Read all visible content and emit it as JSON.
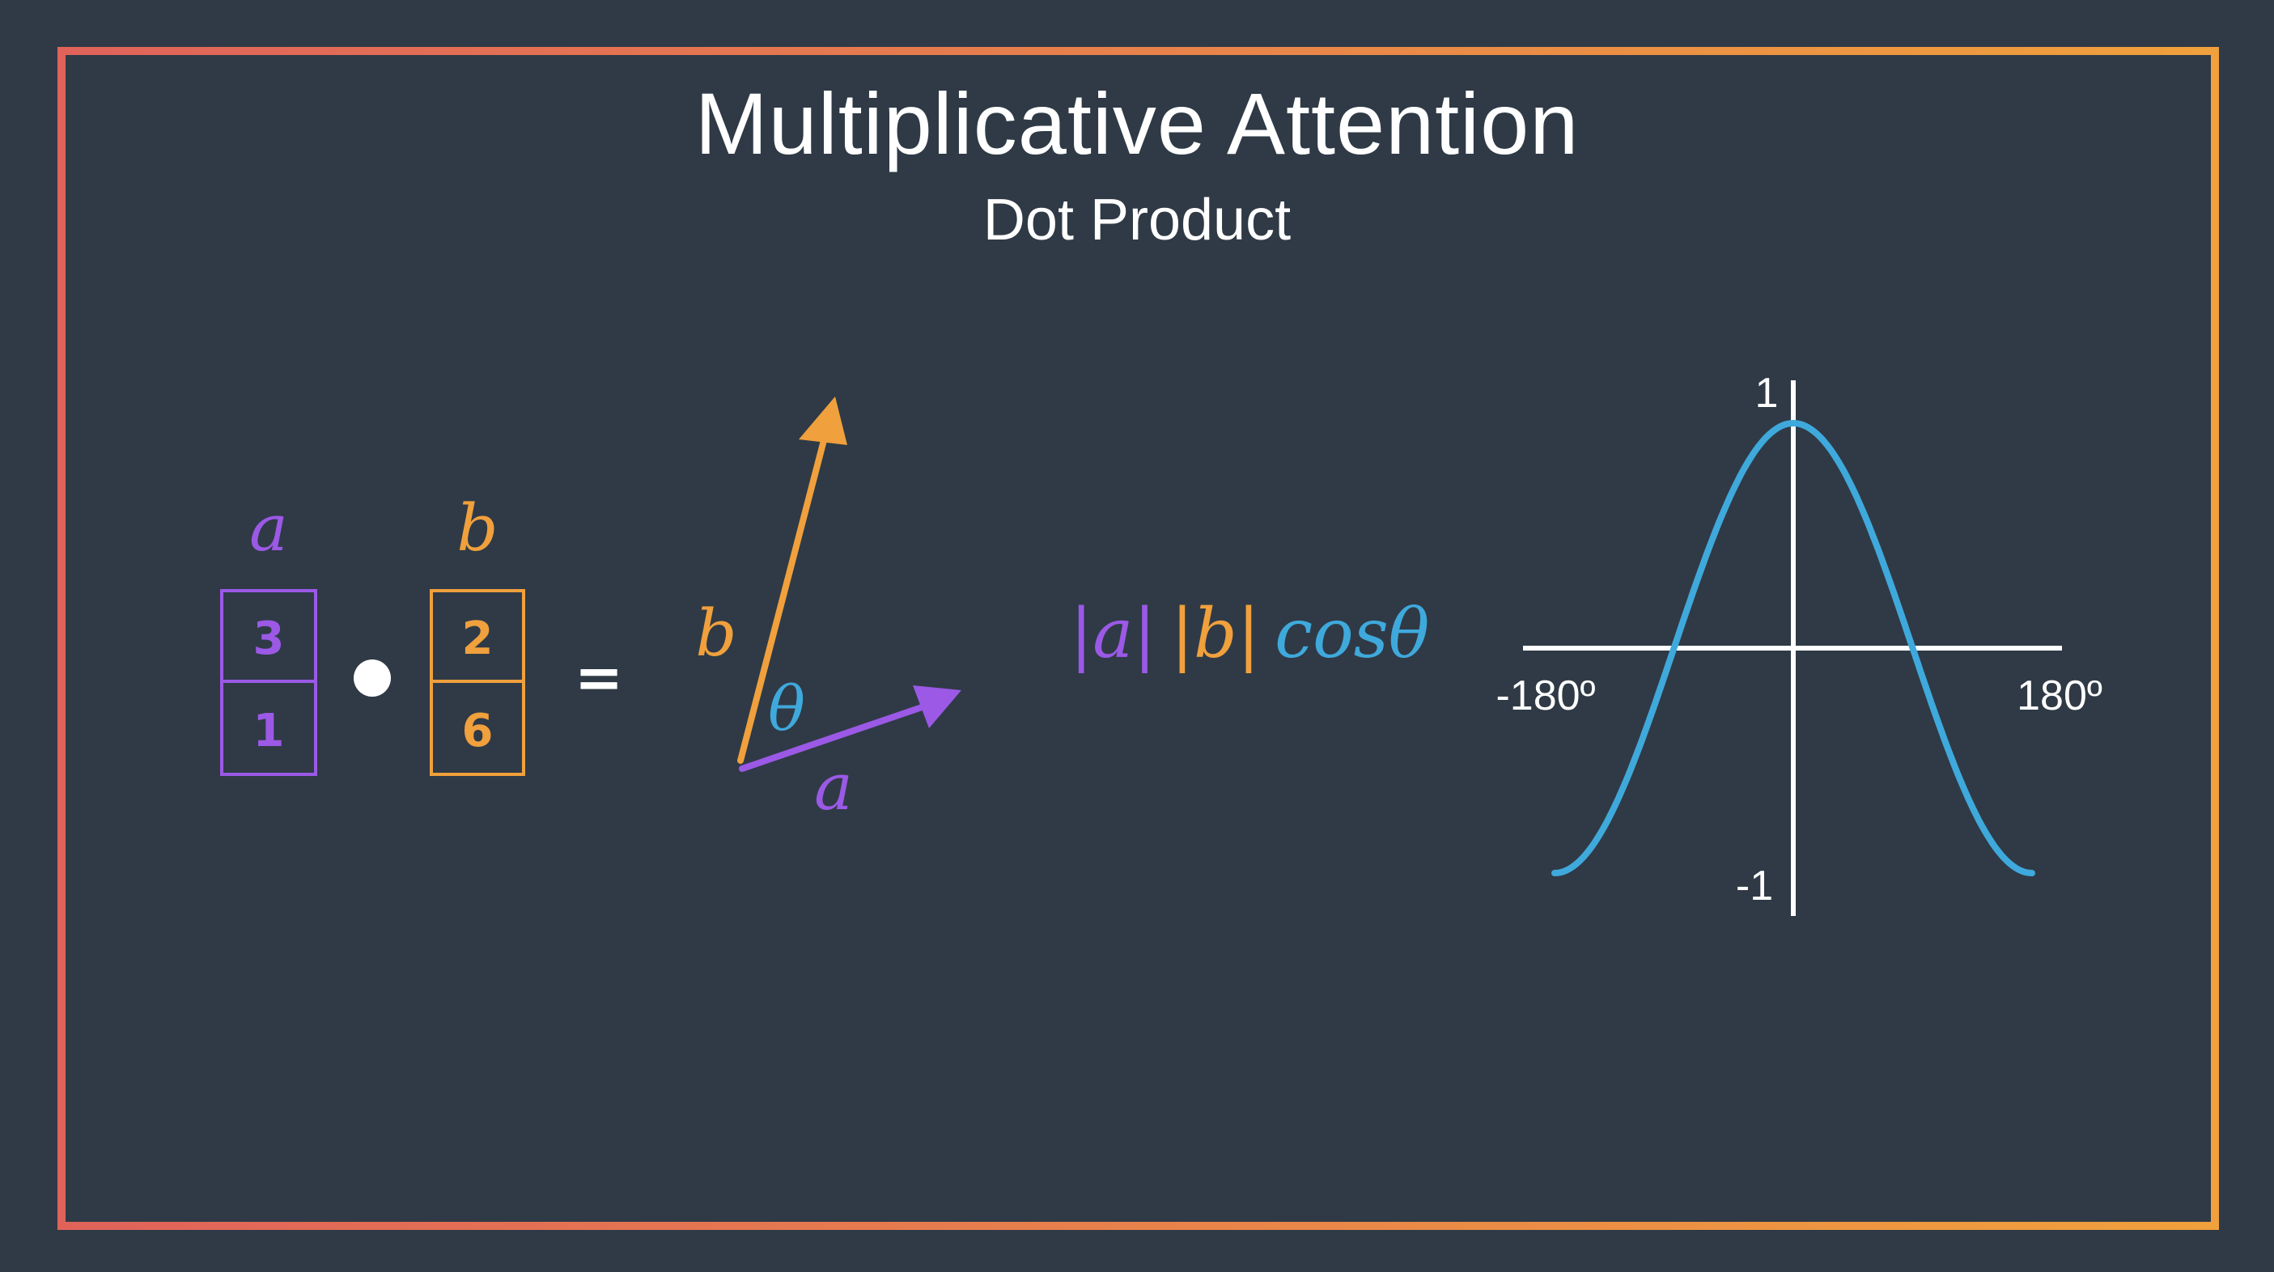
{
  "slide": {
    "title": "Multiplicative Attention",
    "subtitle": "Dot Product"
  },
  "vectors": {
    "a": {
      "label": "a",
      "values": [
        "3",
        "1"
      ],
      "color": "#9b59e6"
    },
    "b": {
      "label": "b",
      "values": [
        "2",
        "6"
      ],
      "color": "#f0a03c"
    },
    "equals": "="
  },
  "diagram": {
    "label_a": "a",
    "label_b": "b",
    "angle": "θ",
    "angle_color": "#3fa9dc"
  },
  "formula": {
    "abs_a": "|a|",
    "abs_b": "|b|",
    "cos": "cosθ"
  },
  "cosine_plot": {
    "y_max_label": "1",
    "y_min_label": "-1",
    "x_min_label": "-180º",
    "x_max_label": "180º",
    "curve_color": "#3fa9dc"
  },
  "border_colors": {
    "start": "#e0635a",
    "end": "#f0a03c"
  }
}
